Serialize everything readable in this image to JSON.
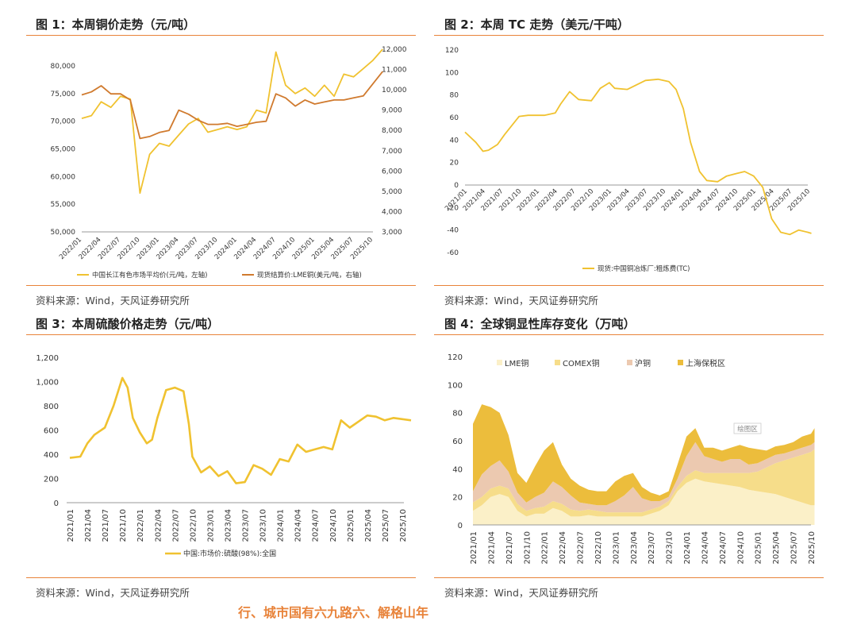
{
  "panels": {
    "p1": {
      "title": "图 1：本周铜价走势（元/吨）",
      "source": "资料来源：Wind，天风证券研究所"
    },
    "p2": {
      "title": "图 2：本周 TC 走势（美元/干吨）",
      "source": "资料来源：Wind，天风证券研究所"
    },
    "p3": {
      "title": "图 3：本周硫酸价格走势（元/吨）",
      "source": "资料来源：Wind，天风证券研究所"
    },
    "p4": {
      "title": "图 4：全球铜显性库存变化（万吨）",
      "source": "资料来源：Wind，天风证券研究所"
    }
  },
  "footer_text": "行、城市国有六九路六、解格山年",
  "colors": {
    "gold": "#f0c230",
    "copper": "#d07a2e",
    "rule": "#e8833a"
  },
  "chart_data": [
    {
      "id": "p1",
      "type": "line",
      "title": "图 1：本周铜价走势（元/吨）",
      "categories": [
        "2022/01",
        "2022/04",
        "2022/07",
        "2022/10",
        "2023/01",
        "2023/04",
        "2023/07",
        "2023/10",
        "2024/01",
        "2024/04",
        "2024/07",
        "2024/10",
        "2025/01",
        "2025/04",
        "2025/07",
        "2025/10"
      ],
      "left_axis": {
        "ticks": [
          "50,000",
          "55,000",
          "60,000",
          "65,000",
          "70,000",
          "75,000",
          "80,000"
        ],
        "range": [
          50000,
          83000
        ]
      },
      "right_axis": {
        "ticks": [
          "3,000",
          "4,000",
          "5,000",
          "6,000",
          "7,000",
          "8,000",
          "9,000",
          "10,000",
          "11,000",
          "12,000"
        ],
        "range": [
          3000,
          12000
        ]
      },
      "series": [
        {
          "name": "中国长江有色市场平均价(元/吨，左轴)",
          "axis": "left",
          "color": "#f0c230",
          "x": [
            0,
            0.5,
            1,
            1.5,
            2,
            2.5,
            3,
            3.5,
            4,
            4.5,
            5,
            5.5,
            6,
            6.5,
            7,
            7.5,
            8,
            8.5,
            9,
            9.5,
            10,
            10.5,
            11,
            11.5,
            12,
            12.5,
            13,
            13.5,
            14,
            14.5,
            15,
            15.5
          ],
          "values": [
            70500,
            71000,
            73500,
            72500,
            74500,
            74000,
            57000,
            64000,
            66000,
            65500,
            67500,
            69500,
            70500,
            68000,
            68500,
            69000,
            68500,
            69000,
            72000,
            71500,
            82500,
            76500,
            75000,
            76000,
            74500,
            76500,
            74500,
            78500,
            78000,
            79500,
            81000,
            83000
          ]
        },
        {
          "name": "现货结算价:LME铜(美元/吨，右轴)",
          "axis": "right",
          "color": "#d07a2e",
          "x": [
            0,
            0.5,
            1,
            1.5,
            2,
            2.5,
            3,
            3.5,
            4,
            4.5,
            5,
            5.5,
            6,
            6.5,
            7,
            7.5,
            8,
            8.5,
            9,
            9.5,
            10,
            10.5,
            11,
            11.5,
            12,
            12.5,
            13,
            13.5,
            14,
            14.5,
            15,
            15.5
          ],
          "values": [
            9750,
            9900,
            10200,
            9800,
            9800,
            9500,
            7600,
            7700,
            7900,
            8000,
            9000,
            8800,
            8500,
            8300,
            8300,
            8350,
            8200,
            8300,
            8400,
            8450,
            9800,
            9600,
            9200,
            9500,
            9300,
            9400,
            9500,
            9500,
            9600,
            9700,
            10300,
            10900
          ]
        }
      ],
      "legend": [
        "中国长江有色市场平均价(元/吨，左轴)",
        "现货结算价:LME铜(美元/吨，右轴)"
      ]
    },
    {
      "id": "p2",
      "type": "line",
      "title": "图 2：本周 TC 走势（美元/干吨）",
      "categories": [
        "2021/01",
        "2021/04",
        "2021/07",
        "2021/10",
        "2022/01",
        "2022/04",
        "2022/07",
        "2022/10",
        "2023/01",
        "2023/04",
        "2023/07",
        "2023/10",
        "2024/01",
        "2024/04",
        "2024/07",
        "2024/10",
        "2025/01",
        "2025/04",
        "2025/07",
        "2025/10"
      ],
      "y_ticks": [
        "120",
        "100",
        "80",
        "60",
        "40",
        "20",
        "0",
        "-20",
        "-40",
        "-60"
      ],
      "ylim": [
        -60,
        120
      ],
      "series": [
        {
          "name": "现货:中国铜冶炼厂:粗炼费(TC)",
          "color": "#f0c230",
          "x": [
            0,
            0.6,
            1,
            1.3,
            1.8,
            2.2,
            3,
            3.5,
            4,
            4.4,
            5,
            5.3,
            5.8,
            6.3,
            7,
            7.5,
            8,
            8.3,
            9,
            9.5,
            10,
            10.7,
            11.3,
            11.7,
            12.1,
            12.5,
            13,
            13.4,
            14,
            14.5,
            15,
            15.5,
            16,
            16.5,
            17,
            17.5,
            18,
            18.5,
            19,
            19.2
          ],
          "values": [
            47,
            38,
            30,
            31,
            36,
            45,
            61,
            62,
            62,
            62,
            64,
            72,
            83,
            76,
            75,
            86,
            91,
            86,
            85,
            89,
            93,
            94,
            92,
            85,
            68,
            38,
            12,
            4,
            3,
            8,
            10,
            12,
            8,
            -2,
            -30,
            -42,
            -44,
            -40,
            -42,
            -43
          ]
        }
      ],
      "legend": [
        "现货:中国铜冶炼厂:粗炼费(TC)"
      ]
    },
    {
      "id": "p3",
      "type": "line",
      "title": "图 3：本周硫酸价格走势（元/吨）",
      "categories": [
        "2021/01",
        "2021/04",
        "2021/07",
        "2021/10",
        "2022/01",
        "2022/04",
        "2022/07",
        "2022/10",
        "2023/01",
        "2023/04",
        "2023/07",
        "2023/10",
        "2024/01",
        "2024/04",
        "2024/07",
        "2024/10",
        "2025/01",
        "2025/04",
        "2025/07",
        "2025/10"
      ],
      "y_ticks": [
        "1,200",
        "1,000",
        "800",
        "600",
        "400",
        "200",
        "0"
      ],
      "ylim": [
        0,
        1200
      ],
      "series": [
        {
          "name": "中国:市场价:硫酸(98%):全国",
          "color": "#f0c230",
          "x": [
            0,
            0.6,
            1,
            1.4,
            2,
            2.5,
            3,
            3.3,
            3.6,
            4,
            4.4,
            4.7,
            5,
            5.5,
            6,
            6.5,
            6.8,
            7,
            7.5,
            8,
            8.5,
            9,
            9.5,
            10,
            10.5,
            11,
            11.5,
            12,
            12.5,
            13,
            13.5,
            14,
            14.5,
            15,
            15.5,
            16,
            16.5,
            17,
            17.5,
            18,
            18.5,
            19,
            19.5
          ],
          "values": [
            370,
            380,
            490,
            560,
            620,
            800,
            1030,
            950,
            700,
            580,
            490,
            520,
            700,
            930,
            950,
            920,
            650,
            380,
            250,
            300,
            220,
            260,
            160,
            170,
            310,
            280,
            230,
            360,
            340,
            480,
            420,
            440,
            460,
            440,
            680,
            620,
            670,
            720,
            710,
            680,
            700,
            690,
            680
          ]
        }
      ],
      "legend": [
        "中国:市场价:硫酸(98%):全国"
      ]
    },
    {
      "id": "p4",
      "type": "area",
      "title": "图 4：全球铜显性库存变化（万吨）",
      "categories": [
        "2021/01",
        "2021/04",
        "2021/07",
        "2021/10",
        "2022/01",
        "2022/04",
        "2022/07",
        "2022/10",
        "2023/01",
        "2023/04",
        "2023/07",
        "2023/10",
        "2024/01",
        "2024/04",
        "2024/07",
        "2024/10",
        "2025/01",
        "2025/04",
        "2025/07",
        "2025/10"
      ],
      "y_ticks": [
        "120",
        "100",
        "80",
        "60",
        "40",
        "20",
        "0"
      ],
      "ylim": [
        0,
        120
      ],
      "annotation": "绘图区",
      "x": [
        0,
        0.5,
        1,
        1.5,
        2,
        2.5,
        3,
        3.5,
        4,
        4.5,
        5,
        5.5,
        6,
        6.5,
        7,
        7.5,
        8,
        8.5,
        9,
        9.5,
        10,
        10.5,
        11,
        11.5,
        12,
        12.5,
        13,
        13.5,
        14,
        14.5,
        15,
        15.5,
        16,
        16.5,
        17,
        17.5,
        18,
        18.5,
        19,
        19.2
      ],
      "series": [
        {
          "name": "LME铜",
          "color": "#fbf0c8",
          "values": [
            10,
            14,
            20,
            22,
            20,
            10,
            6,
            8,
            8,
            12,
            10,
            6,
            6,
            7,
            6,
            6,
            6,
            6,
            6,
            6,
            8,
            10,
            14,
            24,
            30,
            33,
            31,
            30,
            29,
            28,
            27,
            25,
            24,
            23,
            22,
            20,
            18,
            16,
            14,
            14
          ]
        },
        {
          "name": "COMEX铜",
          "color": "#f6dd8a",
          "values": [
            6,
            6,
            6,
            6,
            6,
            5,
            4,
            4,
            5,
            5,
            5,
            5,
            4,
            4,
            4,
            3,
            3,
            3,
            3,
            3,
            3,
            3,
            3,
            3,
            5,
            6,
            6,
            7,
            8,
            9,
            10,
            12,
            14,
            18,
            22,
            26,
            30,
            34,
            38,
            40
          ]
        },
        {
          "name": "沪铜",
          "color": "#ecc9b0",
          "values": [
            8,
            16,
            16,
            18,
            12,
            8,
            6,
            8,
            10,
            14,
            12,
            10,
            6,
            4,
            4,
            5,
            8,
            12,
            18,
            10,
            6,
            4,
            3,
            6,
            14,
            20,
            12,
            10,
            8,
            10,
            10,
            6,
            6,
            6,
            6,
            5,
            5,
            5,
            5,
            5
          ]
        },
        {
          "name": "上海保税区",
          "color": "#ecbd3c",
          "values": [
            48,
            50,
            42,
            34,
            26,
            14,
            14,
            22,
            30,
            28,
            16,
            12,
            12,
            10,
            10,
            10,
            14,
            14,
            10,
            8,
            6,
            4,
            4,
            10,
            14,
            10,
            6,
            8,
            8,
            8,
            10,
            12,
            10,
            6,
            6,
            6,
            6,
            8,
            8,
            10
          ]
        }
      ],
      "legend": [
        "LME铜",
        "COMEX铜",
        "沪铜",
        "上海保税区"
      ]
    }
  ]
}
